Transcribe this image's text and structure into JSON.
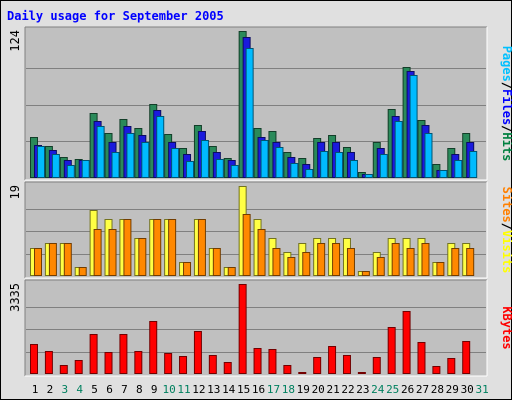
{
  "chart_data": {
    "type": "bar",
    "title": "Daily usage for September 2005",
    "days": [
      "1",
      "2",
      "3",
      "4",
      "5",
      "6",
      "7",
      "8",
      "9",
      "10",
      "11",
      "12",
      "13",
      "14",
      "15",
      "16",
      "17",
      "18",
      "19",
      "20",
      "21",
      "22",
      "23",
      "24",
      "25",
      "26",
      "27",
      "28",
      "29",
      "30",
      "31"
    ],
    "weekend_days": [
      3,
      4,
      10,
      11,
      17,
      18,
      24,
      25,
      31
    ],
    "panels": [
      {
        "id": "hits-files-pages",
        "max_label": "124",
        "ymax": 124,
        "axis_labels": [
          {
            "text": "Pages",
            "color": "#00c0ff"
          },
          {
            "text": "/",
            "color": "#000000"
          },
          {
            "text": "Files",
            "color": "#0000ff"
          },
          {
            "text": "/",
            "color": "#000000"
          },
          {
            "text": "Hits",
            "color": "#008040"
          }
        ],
        "series": [
          {
            "name": "Hits",
            "color": "#2a8a5a",
            "values": [
              35,
              27,
              18,
              16,
              55,
              38,
              50,
              42,
              62,
              37,
              25,
              45,
              27,
              17,
              124,
              42,
              40,
              22,
              17,
              34,
              36,
              26,
              5,
              30,
              58,
              94,
              49,
              12,
              25,
              38,
              0
            ]
          },
          {
            "name": "Files",
            "color": "#1a1add",
            "values": [
              28,
              24,
              15,
              15,
              48,
              30,
              44,
              36,
              57,
              30,
              20,
              40,
              22,
              15,
              119,
              35,
              30,
              18,
              12,
              30,
              30,
              22,
              3,
              25,
              52,
              90,
              45,
              7,
              20,
              30,
              0
            ]
          },
          {
            "name": "Pages",
            "color": "#00bbff",
            "values": [
              27,
              20,
              11,
              15,
              44,
              22,
              38,
              30,
              52,
              25,
              14,
              32,
              16,
              11,
              110,
              32,
              26,
              13,
              8,
              23,
              22,
              15,
              3,
              20,
              48,
              87,
              38,
              7,
              15,
              23,
              0
            ]
          }
        ]
      },
      {
        "id": "visits-sites",
        "max_label": "19",
        "ymax": 19,
        "axis_labels": [
          {
            "text": "Sites",
            "color": "#ff8000"
          },
          {
            "text": "/",
            "color": "#000000"
          },
          {
            "text": "Visits",
            "color": "#ffff00"
          }
        ],
        "series": [
          {
            "name": "Visits",
            "color": "#ffff44",
            "values": [
              6,
              7,
              7,
              2,
              14,
              12,
              12,
              8,
              12,
              12,
              3,
              12,
              6,
              2,
              19,
              12,
              8,
              5,
              7,
              8,
              8,
              8,
              1,
              5,
              8,
              8,
              8,
              3,
              7,
              7,
              0
            ]
          },
          {
            "name": "Sites",
            "color": "#ff8800",
            "values": [
              6,
              7,
              7,
              2,
              10,
              10,
              12,
              8,
              12,
              12,
              3,
              12,
              6,
              2,
              13,
              10,
              6,
              4,
              5,
              7,
              7,
              6,
              1,
              4,
              7,
              6,
              7,
              3,
              6,
              6,
              0
            ]
          }
        ]
      },
      {
        "id": "kbytes",
        "max_label": "3335",
        "ymax": 3335,
        "axis_labels": [
          {
            "text": "KBytes",
            "color": "#ff0000"
          }
        ],
        "series": [
          {
            "name": "KBytes",
            "color": "#ff0000",
            "values": [
              1130,
              860,
              350,
              510,
              1480,
              830,
              1500,
              850,
              1950,
              760,
              660,
              1600,
              720,
              430,
              3335,
              960,
              920,
              330,
              70,
              640,
              1020,
              690,
              60,
              620,
              1760,
              2320,
              1170,
              310,
              590,
              1230,
              0
            ]
          }
        ]
      }
    ]
  },
  "colors": {
    "background": "#c0c0c0",
    "outer": "#e0e0e0",
    "title": "#0000ff",
    "day_label": "#000000",
    "weekend_label": "#00805f"
  }
}
